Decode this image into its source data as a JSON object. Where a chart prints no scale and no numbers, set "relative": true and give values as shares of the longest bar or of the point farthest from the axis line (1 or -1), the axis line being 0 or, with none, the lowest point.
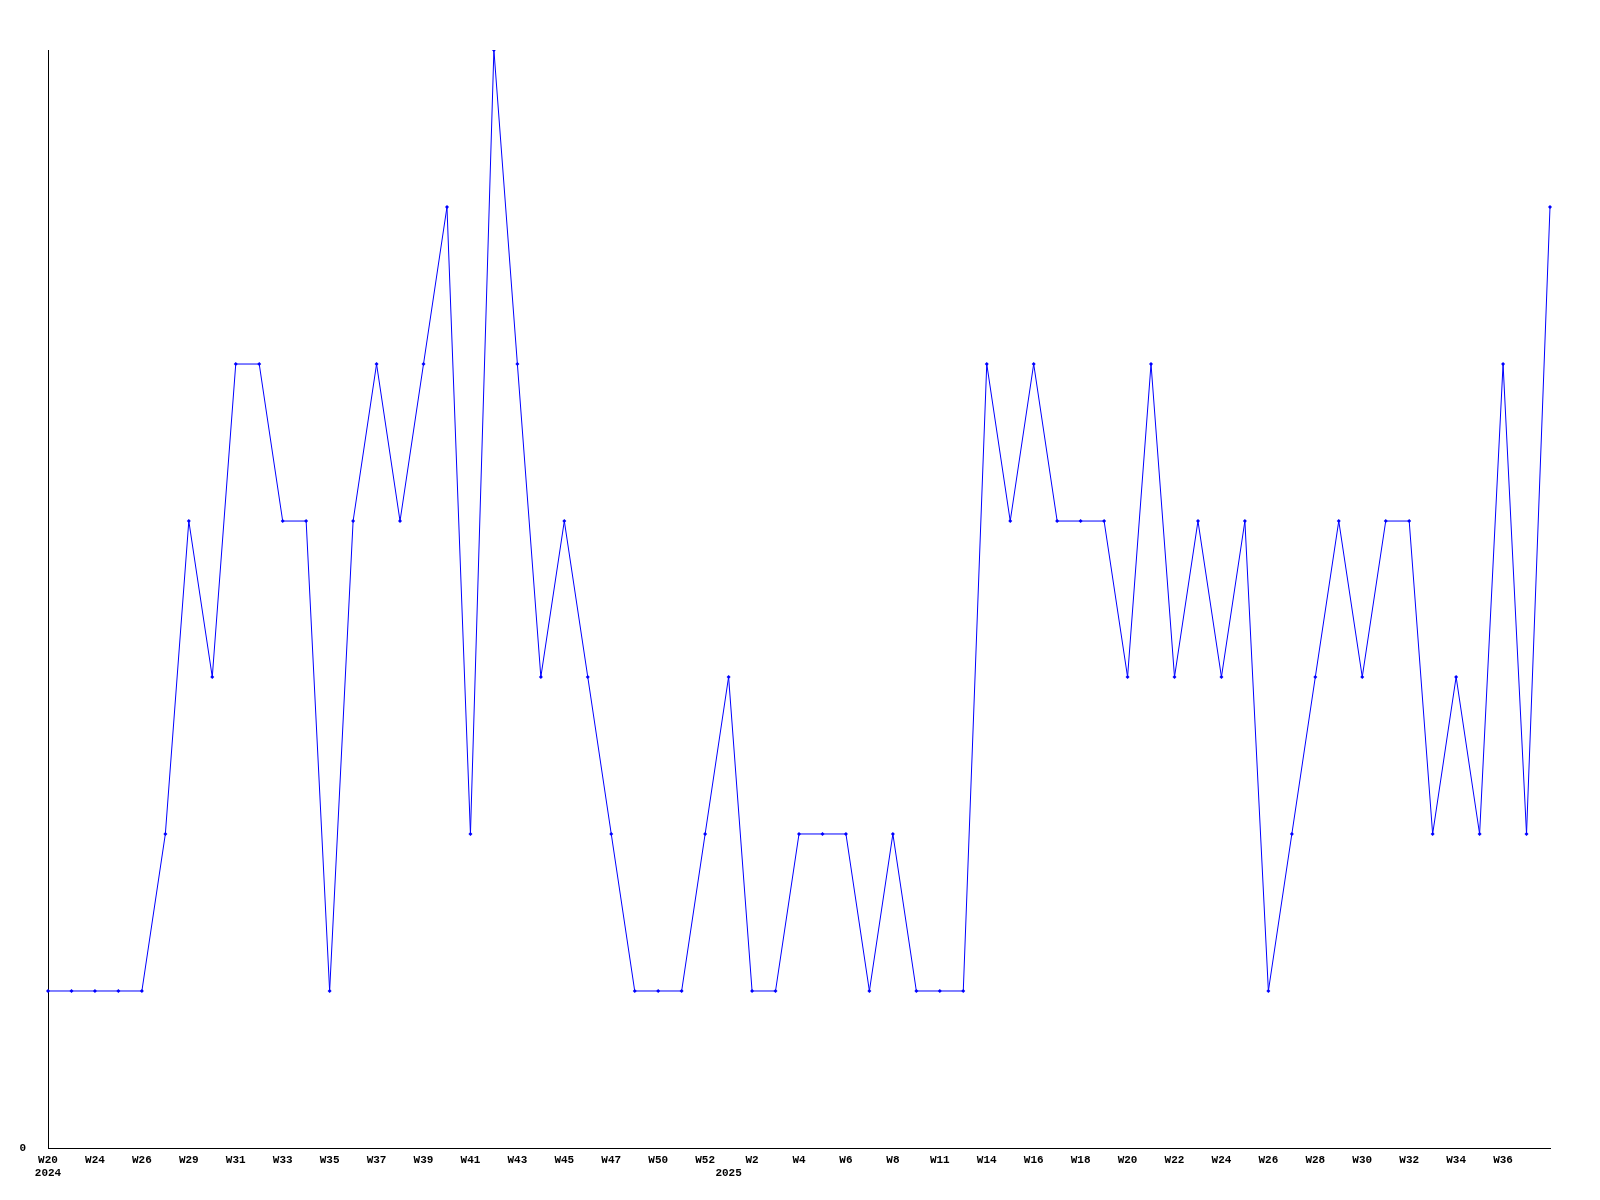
{
  "chart_data": {
    "type": "line",
    "relative": true,
    "color": "#0000ff",
    "marker": "diamond",
    "line_style": "solid",
    "grid": false,
    "legend": false,
    "categories": [
      "W20",
      null,
      "W24",
      null,
      "W26",
      null,
      "W29",
      null,
      "W31",
      null,
      "W33",
      null,
      "W35",
      null,
      "W37",
      null,
      "W39",
      null,
      "W41",
      null,
      "W43",
      null,
      "W45",
      null,
      "W47",
      null,
      "W50",
      null,
      "W52",
      null,
      "W2",
      null,
      "W4",
      null,
      "W6",
      null,
      "W8",
      null,
      "W11",
      null,
      "W14",
      null,
      "W16",
      null,
      "W18",
      null,
      "W20",
      null,
      "W22",
      null,
      "W24",
      null,
      "W26",
      null,
      "W28",
      null,
      "W30",
      null,
      "W32",
      null,
      "W34",
      null,
      "W36",
      null,
      null
    ],
    "values": [
      0.143,
      0.143,
      0.143,
      0.143,
      0.143,
      0.286,
      0.571,
      0.429,
      0.714,
      0.714,
      0.571,
      0.571,
      0.143,
      0.571,
      0.714,
      0.571,
      0.714,
      0.857,
      0.286,
      1,
      0.714,
      0.429,
      0.571,
      0.429,
      0.286,
      0.143,
      0.143,
      0.143,
      0.286,
      0.429,
      0.143,
      0.143,
      0.286,
      0.286,
      0.286,
      0.143,
      0.286,
      0.143,
      0.143,
      0.143,
      0.714,
      0.571,
      0.714,
      0.571,
      0.571,
      0.571,
      0.429,
      0.714,
      0.429,
      0.571,
      0.429,
      0.571,
      0.143,
      0.286,
      0.429,
      0.571,
      0.429,
      0.571,
      0.571,
      0.286,
      0.429,
      0.286,
      0.714,
      0.286,
      0.857
    ],
    "annotations": [
      "0",
      "2024",
      "2025"
    ]
  }
}
